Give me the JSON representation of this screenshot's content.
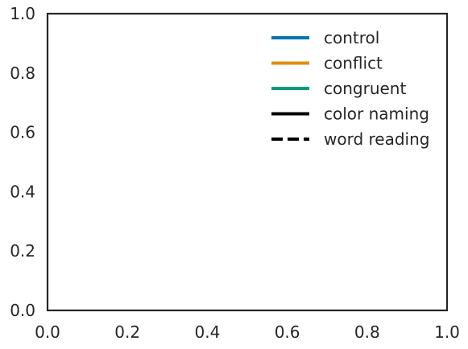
{
  "chart_data": {
    "type": "line",
    "title": "",
    "xlabel": "",
    "ylabel": "",
    "xlim": [
      0.0,
      1.0
    ],
    "ylim": [
      0.0,
      1.0
    ],
    "x_ticks": [
      "0.0",
      "0.2",
      "0.4",
      "0.6",
      "0.8",
      "1.0"
    ],
    "y_ticks": [
      "0.0",
      "0.2",
      "0.4",
      "0.6",
      "0.8",
      "1.0"
    ],
    "grid": false,
    "legend_position": "top-right",
    "series": [],
    "legend": [
      {
        "label": "control",
        "color": "#0173b2",
        "style": "solid"
      },
      {
        "label": "conflict",
        "color": "#de8f05",
        "style": "solid"
      },
      {
        "label": "congruent",
        "color": "#029e73",
        "style": "solid"
      },
      {
        "label": "color naming",
        "color": "#000000",
        "style": "solid"
      },
      {
        "label": "word reading",
        "color": "#000000",
        "style": "dashed"
      }
    ]
  }
}
